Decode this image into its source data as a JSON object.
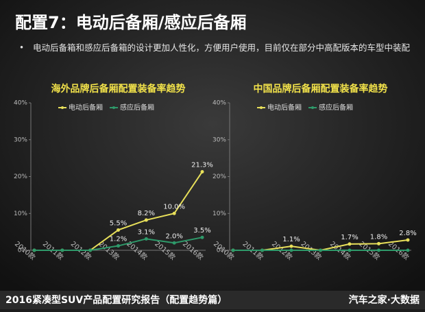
{
  "header": {
    "title": "配置7：电动后备厢/感应后备厢",
    "bullet": "电动后备箱和感应后备箱的设计更加人性化，方便用户使用，目前仅在部分中高配版本的车型中装配"
  },
  "chart_data": [
    {
      "type": "line",
      "title": "海外品牌后备厢配置装备率趋势",
      "categories": [
        "2010款",
        "2011款",
        "2012款",
        "2013款",
        "2014款",
        "2015款",
        "2016款"
      ],
      "series": [
        {
          "name": "电动后备厢",
          "color": "#e8e05a",
          "values": [
            0,
            0,
            0,
            5.5,
            8.2,
            10.0,
            21.3
          ],
          "value_labels": [
            null,
            null,
            null,
            "5.5%",
            "8.2%",
            "10.0%",
            "21.3%"
          ]
        },
        {
          "name": "感应后备厢",
          "color": "#2e9a6a",
          "values": [
            0,
            0,
            0,
            1.2,
            3.1,
            2.0,
            3.5
          ],
          "value_labels": [
            null,
            null,
            null,
            "1.2%",
            "3.1%",
            "2.0%",
            "3.5%"
          ]
        }
      ],
      "ylim": [
        0,
        40
      ],
      "yticks": [
        {
          "value": 0,
          "label": "0%"
        },
        {
          "value": 10,
          "label": "10%"
        },
        {
          "value": 20,
          "label": "20%"
        },
        {
          "value": 30,
          "label": "30%"
        },
        {
          "value": 40,
          "label": "40%"
        }
      ]
    },
    {
      "type": "line",
      "title": "中国品牌后备厢配置装备率趋势",
      "categories": [
        "2010款",
        "2011款",
        "2012款",
        "2013款",
        "2014款",
        "2015款",
        "2016款"
      ],
      "series": [
        {
          "name": "电动后备厢",
          "color": "#e8e05a",
          "values": [
            0,
            0,
            1.1,
            0,
            1.7,
            1.8,
            2.8
          ],
          "value_labels": [
            null,
            null,
            "1.1%",
            null,
            "1.7%",
            "1.8%",
            "2.8%"
          ]
        },
        {
          "name": "感应后备厢",
          "color": "#2e9a6a",
          "values": [
            0,
            0,
            0,
            0,
            0,
            0,
            0
          ]
        }
      ],
      "ylim": [
        0,
        40
      ],
      "yticks": [
        {
          "value": 0,
          "label": "0%"
        },
        {
          "value": 10,
          "label": "10%"
        },
        {
          "value": 20,
          "label": "20%"
        },
        {
          "value": 30,
          "label": "30%"
        },
        {
          "value": 40,
          "label": "40%"
        }
      ]
    }
  ],
  "footer": {
    "left": "2016紧凑型SUV产品配置研究报告（配置趋势篇）",
    "right": "汽车之家·大数据"
  }
}
